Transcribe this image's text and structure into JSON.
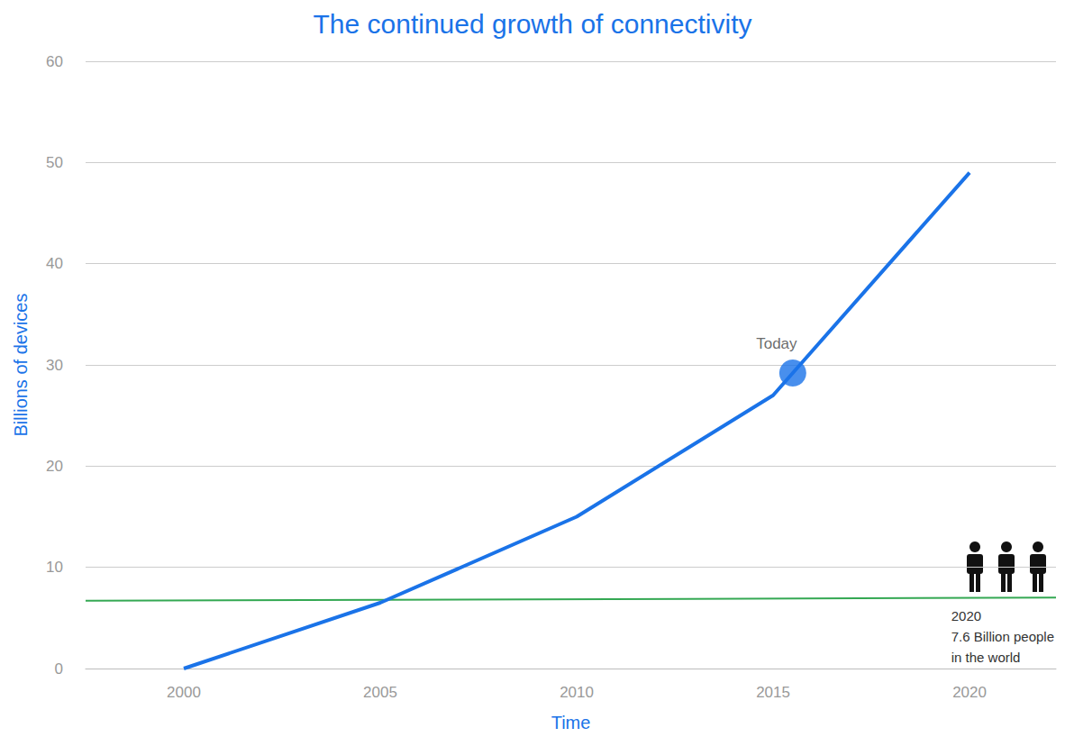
{
  "chart_data": {
    "type": "line",
    "title": "The continued growth of connectivity",
    "x_label": "Time",
    "y_label": "Billions of devices",
    "xlim": [
      1997.5,
      2022.2
    ],
    "xticks": [
      2000,
      2005,
      2010,
      2015,
      2020
    ],
    "ylim": [
      0,
      60
    ],
    "yticks": [
      0,
      10,
      20,
      30,
      40,
      50,
      60
    ],
    "grid": true,
    "series": [
      {
        "color": "#1a73e8",
        "marker": "none",
        "x": [
          2000,
          2005,
          2010,
          2015,
          2015.5,
          2020
        ],
        "values": [
          0,
          6.5,
          15,
          27,
          29.2,
          49
        ]
      },
      {
        "color": "#34a853",
        "marker": "none",
        "x": [
          1997.5,
          2022.2
        ],
        "values": [
          6.7,
          7.0
        ]
      }
    ],
    "annotations": [
      {
        "text": "Today",
        "x": 2015.5,
        "y": 29.2,
        "color": "#1a73e8",
        "marker": "circle"
      },
      {
        "text": [
          "2020",
          "7.6 Billion people",
          "in the world"
        ]
      }
    ]
  }
}
